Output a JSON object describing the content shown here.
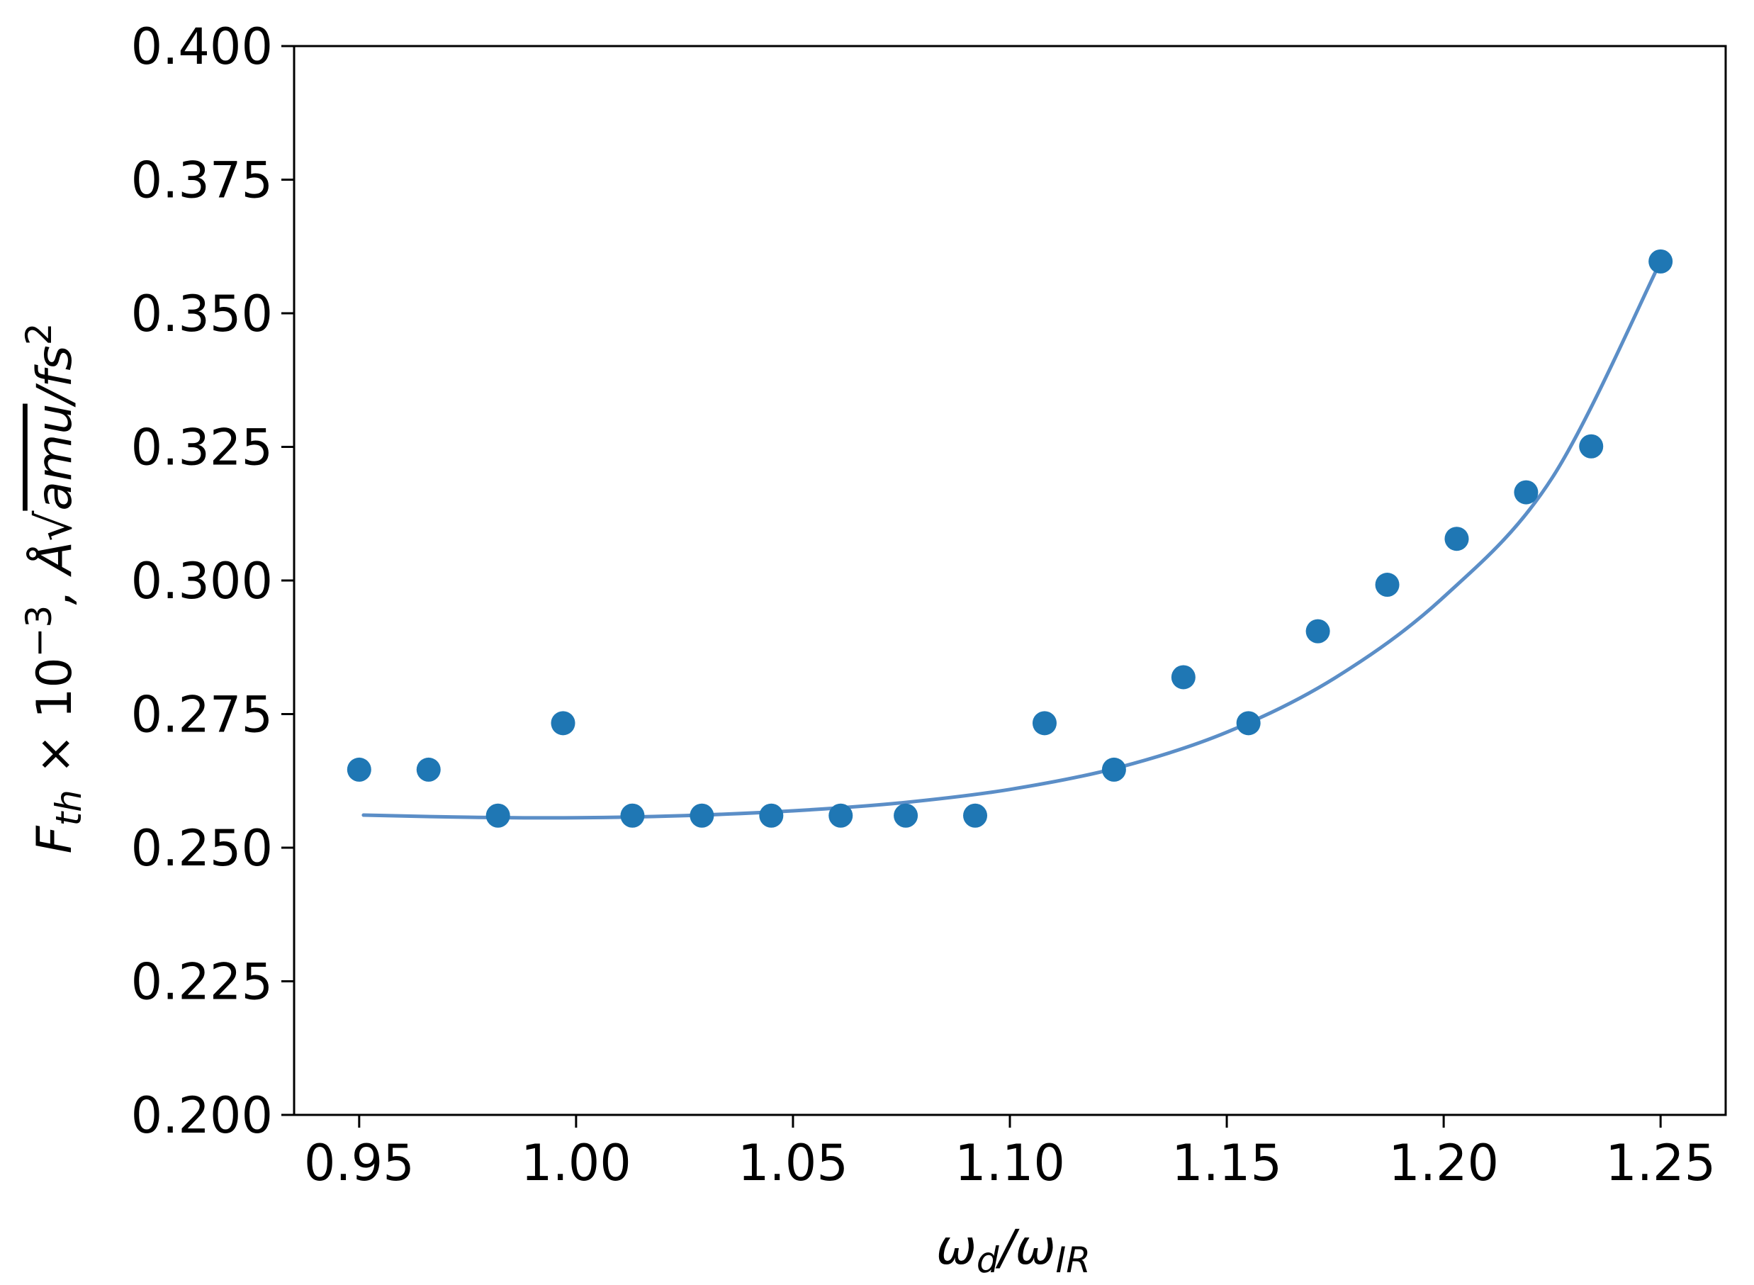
{
  "chart_data": {
    "type": "scatter",
    "xlabel": {
      "main": "ω",
      "sub1": "d",
      "slash": "/ω",
      "sub2": "IR"
    },
    "ylabel": {
      "F": "F",
      "sub": "th",
      "times": " × 10",
      "exp": "−3",
      "unit_pre": ", Å√",
      "unit_rad": "amu",
      "unit_post": "/fs",
      "unit_exp": "2"
    },
    "xlim": [
      0.935,
      1.265
    ],
    "ylim": [
      0.2,
      0.4
    ],
    "xticks": [
      0.95,
      1.0,
      1.05,
      1.1,
      1.15,
      1.2,
      1.25
    ],
    "xtick_labels": [
      "0.95",
      "1.00",
      "1.05",
      "1.10",
      "1.15",
      "1.20",
      "1.25"
    ],
    "yticks": [
      0.2,
      0.225,
      0.25,
      0.275,
      0.3,
      0.325,
      0.35,
      0.375,
      0.4
    ],
    "ytick_labels": [
      "0.200",
      "0.225",
      "0.250",
      "0.275",
      "0.300",
      "0.325",
      "0.350",
      "0.375",
      "0.400"
    ],
    "grid": false,
    "series": [
      {
        "kind": "points",
        "color": "#1f77b4",
        "x": [
          0.95,
          0.966,
          0.982,
          0.997,
          1.013,
          1.029,
          1.045,
          1.061,
          1.076,
          1.092,
          1.108,
          1.124,
          1.14,
          1.155,
          1.171,
          1.187,
          1.203,
          1.219,
          1.234,
          1.25
        ],
        "y": [
          0.2646,
          0.2646,
          0.256,
          0.2733,
          0.256,
          0.256,
          0.256,
          0.256,
          0.256,
          0.256,
          0.2733,
          0.2646,
          0.2819,
          0.2733,
          0.2905,
          0.2992,
          0.3078,
          0.3165,
          0.3251,
          0.3597
        ]
      },
      {
        "kind": "fit",
        "color": "#5b8ec7",
        "x": [
          0.951,
          0.975,
          1.0,
          1.025,
          1.05,
          1.075,
          1.1,
          1.125,
          1.15,
          1.175,
          1.2,
          1.225,
          1.25
        ],
        "y": [
          0.2561,
          0.2557,
          0.2556,
          0.256,
          0.2569,
          0.2584,
          0.2609,
          0.265,
          0.2716,
          0.2818,
          0.2969,
          0.3192,
          0.3597
        ]
      }
    ]
  }
}
